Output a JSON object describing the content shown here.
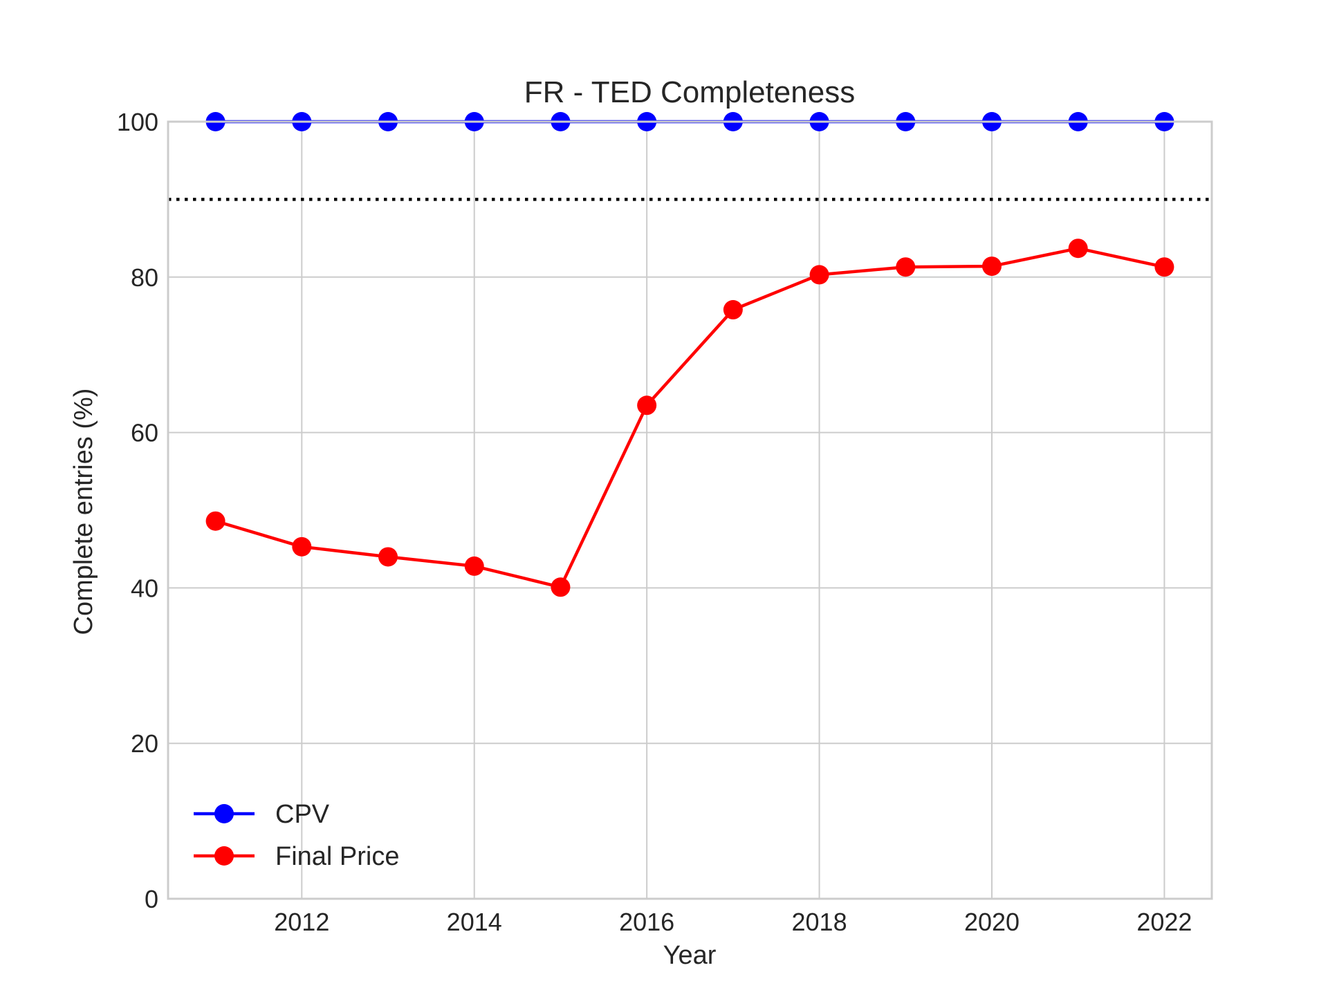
{
  "chart_data": {
    "type": "line",
    "title": "FR - TED Completeness",
    "xlabel": "Year",
    "ylabel": "Complete entries (%)",
    "x": [
      2011,
      2012,
      2013,
      2014,
      2015,
      2016,
      2017,
      2018,
      2019,
      2020,
      2021,
      2022
    ],
    "xlim": [
      2010.45,
      2022.55
    ],
    "ylim": [
      0,
      100
    ],
    "x_ticks": [
      2012,
      2014,
      2016,
      2018,
      2020,
      2022
    ],
    "y_ticks": [
      0,
      20,
      40,
      60,
      80,
      100
    ],
    "grid": true,
    "legend_position": "lower-left",
    "reference_line": {
      "y": 90,
      "style": "dotted",
      "color": "#000000"
    },
    "series": [
      {
        "name": "CPV",
        "color": "#0000ff",
        "values": [
          100,
          100,
          100,
          100,
          100,
          100,
          100,
          100,
          100,
          100,
          100,
          100
        ]
      },
      {
        "name": "Final Price",
        "color": "#ff0000",
        "values": [
          48.6,
          45.3,
          44.0,
          42.8,
          40.1,
          63.5,
          75.8,
          80.3,
          81.3,
          81.4,
          83.7,
          81.3
        ]
      }
    ]
  }
}
